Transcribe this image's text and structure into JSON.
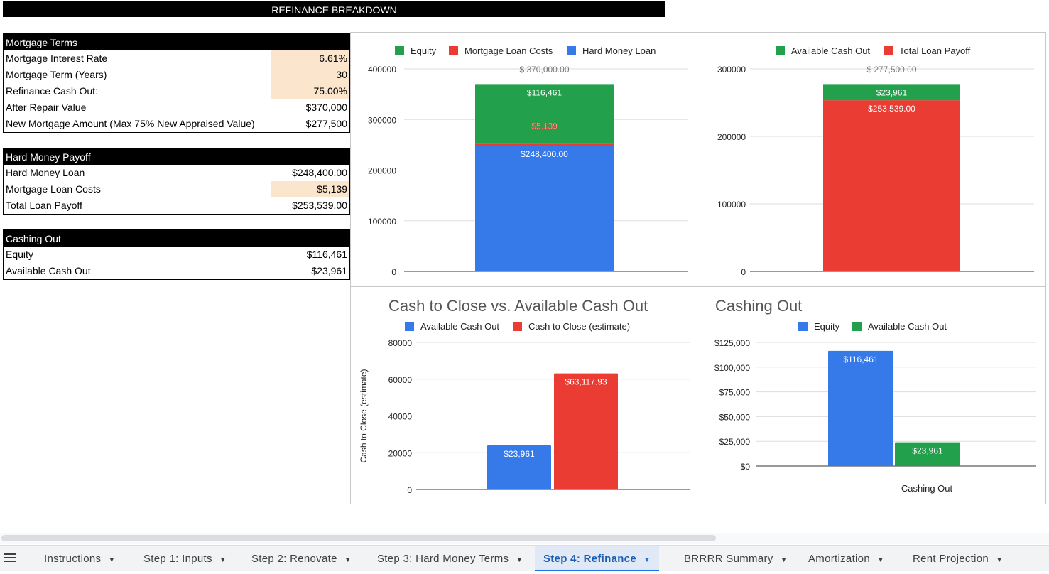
{
  "title": "REFINANCE BREAKDOWN",
  "mortgage_terms": {
    "header": "Mortgage Terms",
    "rows": [
      {
        "label": "Mortgage Interest Rate",
        "value": "6.61%",
        "highlight": true
      },
      {
        "label": "Mortgage Term (Years)",
        "value": "30",
        "highlight": true
      },
      {
        "label": "Refinance Cash Out:",
        "value": "75.00%",
        "highlight": true
      },
      {
        "label": "After Repair Value",
        "value": "$370,000",
        "highlight": false
      },
      {
        "label": "New Mortgage Amount (Max 75% New Appraised Value)",
        "value": "$277,500",
        "highlight": false
      }
    ]
  },
  "hard_money_payoff": {
    "header": "Hard Money Payoff",
    "rows": [
      {
        "label": "Hard Money Loan",
        "value": "$248,400.00",
        "highlight": false
      },
      {
        "label": "Mortgage Loan Costs",
        "value": "$5,139",
        "highlight": true
      },
      {
        "label": "Total Loan Payoff",
        "value": "$253,539.00",
        "highlight": false
      }
    ]
  },
  "cashing_out": {
    "header": "Cashing Out",
    "rows": [
      {
        "label": "Equity",
        "value": "$116,461",
        "highlight": false
      },
      {
        "label": "Available Cash Out",
        "value": "$23,961",
        "highlight": false
      }
    ]
  },
  "colors": {
    "green": "#22a04b",
    "red": "#ea3c32",
    "blue": "#3679e8",
    "highlight": "#fce5cd"
  },
  "chart_data": [
    {
      "type": "bar",
      "stacked": true,
      "title": "",
      "categories": [
        ""
      ],
      "series": [
        {
          "name": "Hard Money Loan",
          "values": [
            248400
          ],
          "color": "#3679e8",
          "label": "$248,400.00"
        },
        {
          "name": "Mortgage Loan Costs",
          "values": [
            5139
          ],
          "color": "#ea3c32",
          "label": "$5,139"
        },
        {
          "name": "Equity",
          "values": [
            116461
          ],
          "color": "#22a04b",
          "label": "$116,461"
        }
      ],
      "legend_order": [
        "Equity",
        "Mortgage Loan Costs",
        "Hard Money Loan"
      ],
      "total_label": "$ 370,000.00",
      "yticks": [
        "400000",
        "300000",
        "200000",
        "100000",
        "0"
      ],
      "ylim": [
        0,
        400000
      ],
      "legend": "top",
      "grid": true
    },
    {
      "type": "bar",
      "stacked": true,
      "title": "",
      "categories": [
        ""
      ],
      "series": [
        {
          "name": "Total Loan Payoff",
          "values": [
            253539
          ],
          "color": "#ea3c32",
          "label": "$253,539.00"
        },
        {
          "name": "Available Cash Out",
          "values": [
            23961
          ],
          "color": "#22a04b",
          "label": "$23,961"
        }
      ],
      "legend_order": [
        "Available Cash Out",
        "Total Loan Payoff"
      ],
      "total_label": "$ 277,500.00",
      "yticks": [
        "300000",
        "200000",
        "100000",
        "0"
      ],
      "ylim": [
        0,
        300000
      ],
      "legend": "top",
      "grid": true
    },
    {
      "type": "bar",
      "stacked": false,
      "title": "Cash to Close vs. Available Cash Out",
      "ylabel": "Cash to Close (estimate)",
      "categories": [
        ""
      ],
      "series": [
        {
          "name": "Available Cash Out",
          "values": [
            23961
          ],
          "color": "#3679e8",
          "label": "$23,961"
        },
        {
          "name": "Cash to Close (estimate)",
          "values": [
            63117.93
          ],
          "color": "#ea3c32",
          "label": "$63,117.93"
        }
      ],
      "yticks": [
        "80000",
        "60000",
        "40000",
        "20000",
        "0"
      ],
      "ylim": [
        0,
        80000
      ],
      "legend": "top",
      "grid": true
    },
    {
      "type": "bar",
      "stacked": false,
      "title": "Cashing Out",
      "xlabel": "Cashing Out",
      "categories": [
        ""
      ],
      "series": [
        {
          "name": "Equity",
          "values": [
            116461
          ],
          "color": "#3679e8",
          "label": "$116,461"
        },
        {
          "name": "Available Cash Out",
          "values": [
            23961
          ],
          "color": "#22a04b",
          "label": "$23,961"
        }
      ],
      "yticks": [
        "$125,000",
        "$100,000",
        "$75,000",
        "$50,000",
        "$25,000",
        "$0"
      ],
      "ylim": [
        0,
        125000
      ],
      "legend": "top",
      "grid": true
    }
  ],
  "tabs": [
    {
      "label": "Instructions",
      "active": false
    },
    {
      "label": "Step 1: Inputs",
      "active": false
    },
    {
      "label": "Step 2: Renovate",
      "active": false
    },
    {
      "label": "Step 3: Hard Money Terms",
      "active": false
    },
    {
      "label": "Step 4: Refinance",
      "active": true
    },
    {
      "label": "BRRRR Summary",
      "active": false
    },
    {
      "label": "Amortization",
      "active": false
    },
    {
      "label": "Rent Projection",
      "active": false
    }
  ],
  "icons": {
    "sheet_menu": "hamburger-menu-icon",
    "tab_caret": "caret-down-icon"
  }
}
